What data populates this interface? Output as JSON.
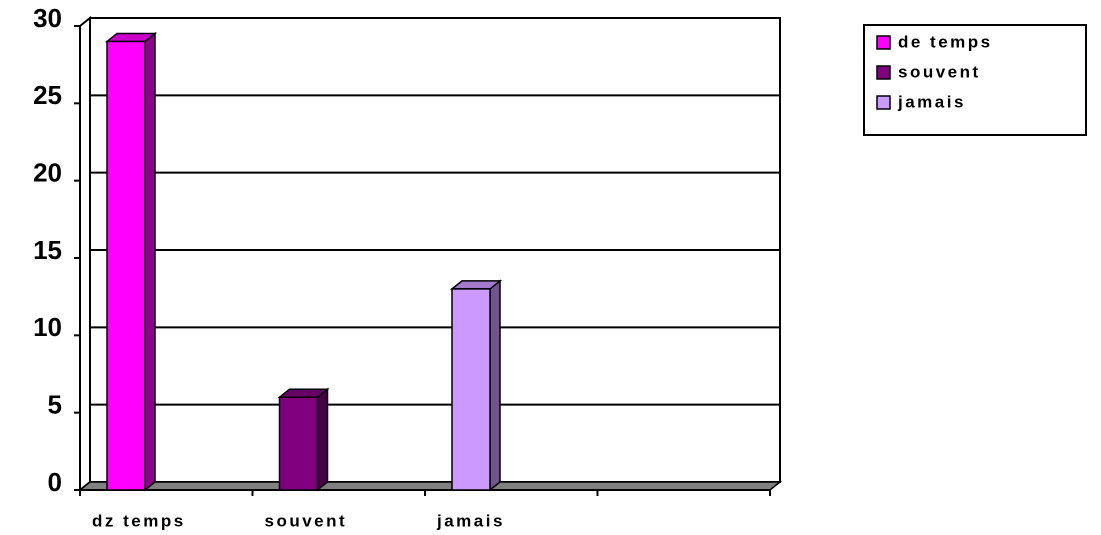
{
  "chart_data": {
    "type": "bar",
    "categories": [
      "dz temps",
      "souvent",
      "jamais",
      null
    ],
    "series": [
      {
        "name": "de temps",
        "color": "#ff00ff",
        "values": [
          29,
          null,
          null,
          null
        ]
      },
      {
        "name": "souvent",
        "color": "#800080",
        "values": [
          null,
          6,
          null,
          null
        ]
      },
      {
        "name": "jamais",
        "color": "#cc99ff",
        "values": [
          null,
          null,
          13,
          null
        ]
      }
    ],
    "ylim": [
      0,
      30
    ],
    "yticks": [
      0,
      5,
      10,
      15,
      20,
      25,
      30
    ],
    "grid": true,
    "legend": "top-right"
  }
}
